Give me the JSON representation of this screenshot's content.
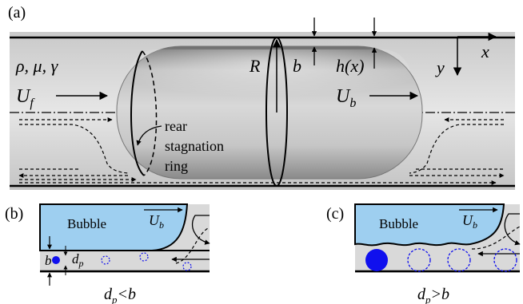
{
  "panels": {
    "a": {
      "label": "(a)"
    },
    "b": {
      "label": "(b)",
      "caption_main": "d",
      "caption_sub": "p",
      "caption_rest": "<b"
    },
    "c": {
      "label": "(c)",
      "caption_main": "d",
      "caption_sub": "p",
      "caption_rest": ">b"
    }
  },
  "labels": {
    "fluid_props": "ρ, μ, γ",
    "uf_main": "U",
    "uf_sub": "f",
    "ub_main": "U",
    "ub_sub": "b",
    "radius": "R",
    "film_b": "b",
    "film_h": "h(x)",
    "axis_x": "x",
    "axis_y": "y",
    "rear_line1": "rear",
    "rear_line2": "stagnation",
    "rear_line3": "ring",
    "bubble_b": "Bubble",
    "bubble_c": "Bubble",
    "ub_b_main": "U",
    "ub_b_sub": "b",
    "ub_c_main": "U",
    "ub_c_sub": "b",
    "b_small": "b",
    "dp_main": "d",
    "dp_sub": "p"
  },
  "colors": {
    "tube": "#d9d9d9",
    "bubble_fill": "#9ecff0",
    "bubble_light": "#a6dbff",
    "particle": "#1010ee"
  }
}
